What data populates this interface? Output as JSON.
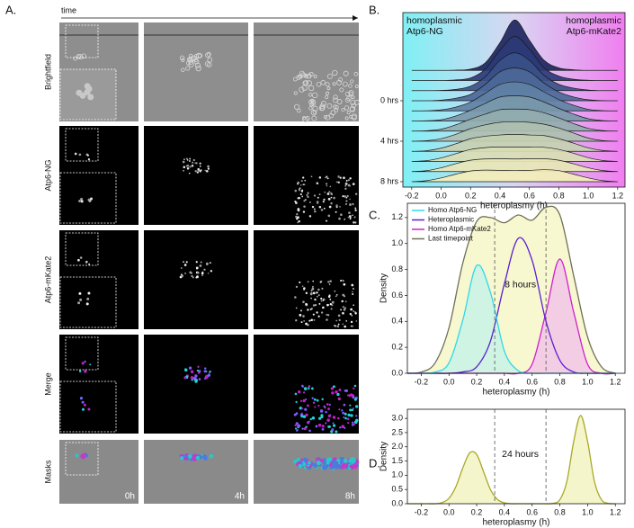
{
  "panel_a": {
    "label": "A.",
    "time_label": "time",
    "rows": [
      "Brightfield",
      "Atp6-NG",
      "Atp6-mKate2",
      "Merge",
      "Masks"
    ],
    "timepoints": [
      "0h",
      "4h",
      "8h"
    ]
  },
  "chart_data": [
    {
      "type": "ridgeline",
      "label": "B.",
      "annotations": [
        [
          "homoplasmic",
          "Atp6-NG"
        ],
        [
          "homoplasmic",
          "Atp6-mKate2"
        ]
      ],
      "xlabel": "heteroplasmy (h)",
      "xlim": [
        -0.26,
        1.25
      ],
      "xticks": [
        -0.2,
        {
          "value": 0,
          "label": "0.0"
        },
        0.2,
        0.4,
        0.6,
        0.8,
        {
          "value": 1,
          "label": "1.0"
        },
        1.2
      ],
      "categories": [
        null,
        null,
        null,
        "0 hrs",
        null,
        null,
        null,
        "4 hrs",
        null,
        null,
        null,
        "8 hrs"
      ],
      "x": [
        -0.2,
        -0.1,
        0,
        0.1,
        0.2,
        0.3,
        0.4,
        0.5,
        0.6,
        0.7,
        0.8,
        0.9,
        1.0,
        1.1,
        1.2
      ],
      "series": [
        {
          "color": "#1e2660",
          "values": [
            0,
            0,
            0,
            0.02,
            0.1,
            0.6,
            2.2,
            4.0,
            2.4,
            0.8,
            0.2,
            0.05,
            0,
            0,
            0
          ]
        },
        {
          "color": "#2b3a78",
          "values": [
            0,
            0,
            0,
            0.05,
            0.2,
            0.9,
            2.4,
            3.5,
            2.5,
            1.0,
            0.35,
            0.1,
            0.02,
            0,
            0
          ]
        },
        {
          "color": "#3a5088",
          "values": [
            0,
            0,
            0.02,
            0.1,
            0.35,
            1.1,
            2.4,
            3.0,
            2.4,
            1.2,
            0.5,
            0.2,
            0.05,
            0,
            0
          ]
        },
        {
          "color": "#4c6898",
          "values": [
            0,
            0,
            0.05,
            0.2,
            0.5,
            1.3,
            2.3,
            2.6,
            2.3,
            1.4,
            0.7,
            0.3,
            0.08,
            0.01,
            0
          ]
        },
        {
          "color": "#5f80a4",
          "values": [
            0,
            0.01,
            0.08,
            0.3,
            0.7,
            1.4,
            2.1,
            2.3,
            2.1,
            1.5,
            0.9,
            0.45,
            0.12,
            0.02,
            0
          ]
        },
        {
          "color": "#7898aa",
          "values": [
            0,
            0.02,
            0.1,
            0.4,
            0.85,
            1.4,
            1.9,
            2.0,
            1.9,
            1.5,
            1.0,
            0.55,
            0.18,
            0.03,
            0
          ]
        },
        {
          "color": "#93adae",
          "values": [
            0,
            0.03,
            0.15,
            0.5,
            0.95,
            1.35,
            1.7,
            1.75,
            1.7,
            1.45,
            1.05,
            0.6,
            0.22,
            0.04,
            0
          ]
        },
        {
          "color": "#aebfb0",
          "values": [
            0,
            0.04,
            0.2,
            0.55,
            1.0,
            1.3,
            1.5,
            1.55,
            1.5,
            1.35,
            1.05,
            0.65,
            0.25,
            0.05,
            0
          ]
        },
        {
          "color": "#c6d0b2",
          "values": [
            0,
            0.05,
            0.25,
            0.6,
            1.0,
            1.2,
            1.3,
            1.35,
            1.3,
            1.25,
            1.0,
            0.65,
            0.28,
            0.06,
            0
          ]
        },
        {
          "color": "#d9ddb4",
          "values": [
            0,
            0.06,
            0.28,
            0.62,
            0.95,
            1.1,
            1.15,
            1.15,
            1.15,
            1.12,
            0.95,
            0.65,
            0.3,
            0.07,
            0
          ]
        },
        {
          "color": "#e8e6b6",
          "values": [
            0,
            0.07,
            0.3,
            0.63,
            0.9,
            1.0,
            1.02,
            1.0,
            1.02,
            1.02,
            0.9,
            0.62,
            0.3,
            0.08,
            0
          ]
        },
        {
          "color": "#f3eeb8",
          "values": [
            0,
            0.08,
            0.3,
            0.6,
            0.85,
            0.92,
            0.9,
            0.88,
            0.9,
            0.95,
            0.88,
            0.6,
            0.3,
            0.08,
            0
          ]
        }
      ]
    },
    {
      "type": "density",
      "label": "C.",
      "annotation": "8 hours",
      "xlabel": "heteroplasmy (h)",
      "ylabel": "Density",
      "xlim": [
        -0.3,
        1.27
      ],
      "ylim": [
        0,
        1.31
      ],
      "xticks": [
        -0.2,
        {
          "value": 0,
          "label": "0.0"
        },
        0.2,
        0.4,
        0.6,
        0.8,
        {
          "value": 1,
          "label": "1.0"
        },
        1.2
      ],
      "yticks": [
        {
          "value": 0,
          "label": "0.0"
        },
        0.2,
        0.4,
        0.6,
        0.8,
        {
          "value": 1,
          "label": "1.0"
        },
        1.2
      ],
      "vlines": [
        0.33,
        0.7
      ],
      "legend": "upper left",
      "x": [
        -0.3,
        -0.2,
        -0.1,
        0,
        0.1,
        0.2,
        0.3,
        0.4,
        0.5,
        0.6,
        0.7,
        0.8,
        0.9,
        1.0,
        1.1,
        1.2
      ],
      "series": [
        {
          "name": "Homo Atp6-NG",
          "color": "#2fd8ea",
          "fill": "#c9f3e6",
          "values": [
            0,
            0,
            0.01,
            0.08,
            0.41,
            0.83,
            0.62,
            0.17,
            0.02,
            0,
            0,
            0,
            0,
            0,
            0,
            0
          ]
        },
        {
          "name": "Heteroplasmic",
          "color": "#5a1fd1",
          "fill": "none",
          "values": [
            0,
            0,
            0,
            0,
            0.01,
            0.05,
            0.25,
            0.69,
            1.04,
            0.87,
            0.4,
            0.1,
            0.01,
            0,
            0,
            0
          ]
        },
        {
          "name": "Homo Atp6-mKate2",
          "color": "#d21fd1",
          "fill": "#f2c6e8",
          "values": [
            0,
            0,
            0,
            0,
            0,
            0,
            0,
            0,
            0,
            0.07,
            0.47,
            0.88,
            0.47,
            0.07,
            0,
            0
          ]
        },
        {
          "name": "Last timepoint",
          "color": "#707058",
          "fill": "#f6f6c8",
          "values": [
            0,
            0.01,
            0.08,
            0.35,
            0.85,
            1.17,
            1.2,
            1.16,
            1.22,
            1.18,
            1.28,
            1.22,
            0.75,
            0.28,
            0.05,
            0
          ]
        }
      ]
    },
    {
      "type": "density",
      "label": "D.",
      "annotation": "24 hours",
      "xlabel": "heteroplasmy (h)",
      "ylabel": "Density",
      "xlim": [
        -0.3,
        1.27
      ],
      "ylim": [
        0,
        3.32
      ],
      "xticks": [
        -0.2,
        {
          "value": 0,
          "label": "0.0"
        },
        0.2,
        0.4,
        0.6,
        0.8,
        {
          "value": 1,
          "label": "1.0"
        },
        1.2
      ],
      "yticks": [
        {
          "value": 0,
          "label": "0.0"
        },
        0.5,
        {
          "value": 1,
          "label": "1.0"
        },
        1.5,
        {
          "value": 2,
          "label": "2.0"
        },
        2.5,
        {
          "value": 3,
          "label": "3.0"
        }
      ],
      "vlines": [
        0.33,
        0.7
      ],
      "x": [
        -0.3,
        -0.25,
        -0.2,
        -0.15,
        -0.1,
        -0.05,
        0,
        0.05,
        0.1,
        0.15,
        0.2,
        0.25,
        0.3,
        0.35,
        0.4,
        0.45,
        0.5,
        0.55,
        0.6,
        0.65,
        0.7,
        0.75,
        0.8,
        0.85,
        0.9,
        0.95,
        1.0,
        1.05,
        1.1,
        1.15,
        1.2
      ],
      "series": [
        {
          "color": "#a8a828",
          "fill": "#f3f3c2",
          "values": [
            0,
            0,
            0,
            0,
            0,
            0.04,
            0.19,
            0.6,
            1.26,
            1.79,
            1.73,
            1.12,
            0.49,
            0.15,
            0.03,
            0,
            0,
            0,
            0,
            0,
            0,
            0.01,
            0.14,
            0.77,
            2.19,
            3.1,
            2.19,
            0.77,
            0.14,
            0.01,
            0
          ]
        }
      ]
    }
  ]
}
